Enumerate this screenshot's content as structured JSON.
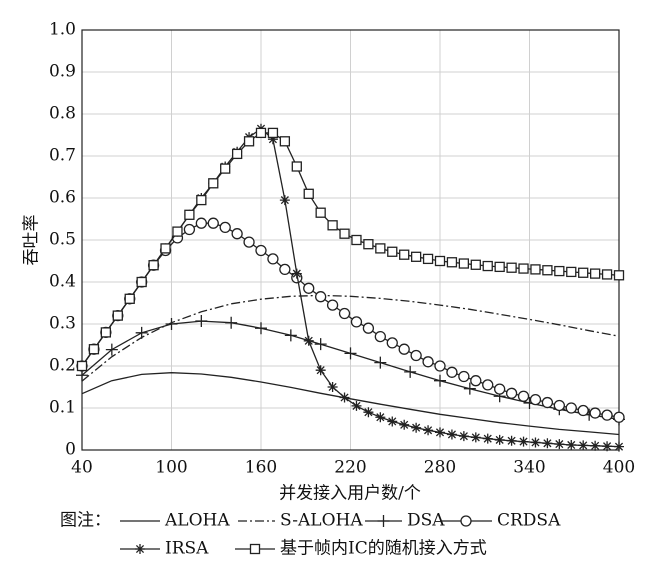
{
  "chart_data": {
    "type": "line",
    "xlabel": "并发接入用户数/个",
    "ylabel": "吞吐率",
    "legend_title": "图注：",
    "xlim": [
      40,
      400
    ],
    "ylim": [
      0,
      1
    ],
    "xticks": [
      40,
      100,
      160,
      220,
      280,
      340,
      400
    ],
    "yticks": [
      0,
      0.1,
      0.2,
      0.3,
      0.4,
      0.5,
      0.6,
      0.7,
      0.8,
      0.9,
      {
        "value": 1,
        "label": "1.0"
      }
    ],
    "grid": true,
    "series": [
      {
        "name": "ALOHA",
        "color": "#222222",
        "dash": "solid",
        "marker": "none",
        "x": [
          40,
          60,
          80,
          100,
          120,
          140,
          160,
          180,
          200,
          220,
          240,
          260,
          280,
          300,
          320,
          340,
          360,
          380,
          400
        ],
        "values": [
          0.134,
          0.165,
          0.18,
          0.184,
          0.181,
          0.173,
          0.162,
          0.149,
          0.135,
          0.122,
          0.109,
          0.097,
          0.085,
          0.075,
          0.065,
          0.057,
          0.049,
          0.043,
          0.037
        ]
      },
      {
        "name": "S-ALOHA",
        "color": "#222222",
        "dash": "dashdot",
        "marker": "none",
        "x": [
          40,
          60,
          80,
          100,
          120,
          140,
          160,
          180,
          200,
          220,
          240,
          260,
          280,
          300,
          320,
          340,
          360,
          380,
          400
        ],
        "values": [
          0.164,
          0.222,
          0.268,
          0.303,
          0.329,
          0.348,
          0.359,
          0.366,
          0.368,
          0.366,
          0.361,
          0.354,
          0.345,
          0.335,
          0.323,
          0.311,
          0.298,
          0.284,
          0.271
        ]
      },
      {
        "name": "DSA",
        "color": "#222222",
        "dash": "solid",
        "marker": "plus",
        "x": [
          40,
          60,
          80,
          100,
          120,
          140,
          160,
          180,
          200,
          220,
          240,
          260,
          280,
          300,
          320,
          340,
          360,
          380,
          400
        ],
        "values": [
          0.178,
          0.239,
          0.279,
          0.3,
          0.307,
          0.303,
          0.29,
          0.273,
          0.252,
          0.23,
          0.208,
          0.186,
          0.165,
          0.146,
          0.128,
          0.112,
          0.097,
          0.084,
          0.073
        ]
      },
      {
        "name": "CRDSA",
        "color": "#222222",
        "dash": "solid",
        "marker": "circle",
        "x": [
          40,
          48,
          56,
          64,
          72,
          80,
          88,
          96,
          104,
          112,
          120,
          128,
          136,
          144,
          152,
          160,
          168,
          176,
          184,
          192,
          200,
          208,
          216,
          224,
          232,
          240,
          248,
          256,
          264,
          272,
          280,
          288,
          296,
          304,
          312,
          320,
          328,
          336,
          344,
          352,
          360,
          368,
          376,
          384,
          392,
          400
        ],
        "values": [
          0.2,
          0.24,
          0.28,
          0.32,
          0.36,
          0.4,
          0.44,
          0.475,
          0.505,
          0.525,
          0.54,
          0.54,
          0.53,
          0.515,
          0.495,
          0.475,
          0.455,
          0.43,
          0.41,
          0.385,
          0.365,
          0.345,
          0.325,
          0.305,
          0.29,
          0.27,
          0.255,
          0.24,
          0.225,
          0.21,
          0.2,
          0.185,
          0.175,
          0.165,
          0.155,
          0.145,
          0.135,
          0.128,
          0.12,
          0.113,
          0.106,
          0.1,
          0.094,
          0.088,
          0.083,
          0.078
        ]
      },
      {
        "name": "IRSA",
        "color": "#222222",
        "dash": "solid",
        "marker": "star",
        "x": [
          40,
          48,
          56,
          64,
          72,
          80,
          88,
          96,
          104,
          112,
          120,
          128,
          136,
          144,
          152,
          160,
          168,
          176,
          184,
          192,
          200,
          208,
          216,
          224,
          232,
          240,
          248,
          256,
          264,
          272,
          280,
          288,
          296,
          304,
          312,
          320,
          328,
          336,
          344,
          352,
          360,
          368,
          376,
          384,
          392,
          400
        ],
        "values": [
          0.2,
          0.24,
          0.28,
          0.32,
          0.36,
          0.4,
          0.44,
          0.48,
          0.52,
          0.56,
          0.6,
          0.635,
          0.675,
          0.71,
          0.745,
          0.765,
          0.74,
          0.595,
          0.42,
          0.26,
          0.19,
          0.15,
          0.125,
          0.105,
          0.09,
          0.078,
          0.068,
          0.06,
          0.053,
          0.047,
          0.042,
          0.037,
          0.033,
          0.03,
          0.027,
          0.024,
          0.022,
          0.02,
          0.018,
          0.016,
          0.014,
          0.012,
          0.011,
          0.01,
          0.009,
          0.008
        ]
      },
      {
        "name": "基于帧内IC的随机接入方式",
        "color": "#222222",
        "dash": "solid",
        "marker": "square",
        "x": [
          40,
          48,
          56,
          64,
          72,
          80,
          88,
          96,
          104,
          112,
          120,
          128,
          136,
          144,
          152,
          160,
          168,
          176,
          184,
          192,
          200,
          208,
          216,
          224,
          232,
          240,
          248,
          256,
          264,
          272,
          280,
          288,
          296,
          304,
          312,
          320,
          328,
          336,
          344,
          352,
          360,
          368,
          376,
          384,
          392,
          400
        ],
        "values": [
          0.2,
          0.24,
          0.28,
          0.32,
          0.36,
          0.4,
          0.44,
          0.48,
          0.52,
          0.56,
          0.595,
          0.635,
          0.67,
          0.705,
          0.735,
          0.755,
          0.755,
          0.735,
          0.675,
          0.61,
          0.565,
          0.535,
          0.515,
          0.5,
          0.49,
          0.48,
          0.472,
          0.465,
          0.46,
          0.455,
          0.45,
          0.447,
          0.444,
          0.441,
          0.438,
          0.436,
          0.434,
          0.432,
          0.43,
          0.428,
          0.426,
          0.424,
          0.422,
          0.42,
          0.418,
          0.416
        ]
      }
    ]
  }
}
